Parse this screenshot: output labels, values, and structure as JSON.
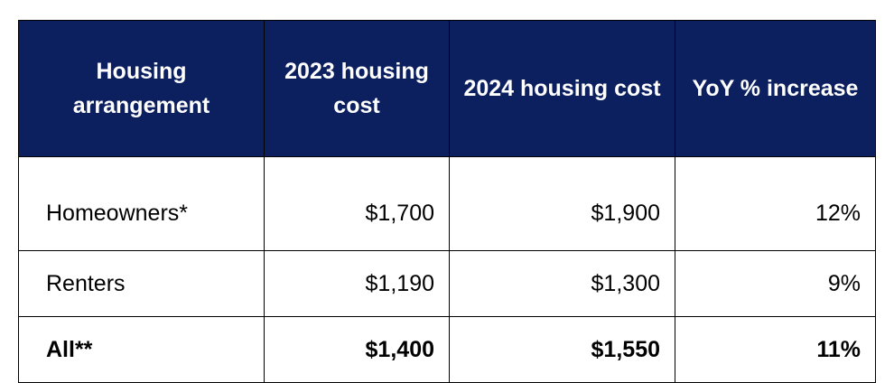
{
  "table": {
    "headers": [
      "Housing arrangement",
      "2023 housing cost",
      "2024 housing cost",
      "YoY % increase"
    ],
    "rows": [
      [
        "Homeowners*",
        "$1,700",
        "$1,900",
        "12%"
      ],
      [
        "Renters",
        "$1,190",
        "$1,300",
        "9%"
      ],
      [
        "All**",
        "$1,400",
        "$1,550",
        "11%"
      ]
    ]
  },
  "colors": {
    "header_bg": "#0c1f5e",
    "header_text": "#ffffff",
    "border": "#000000"
  }
}
